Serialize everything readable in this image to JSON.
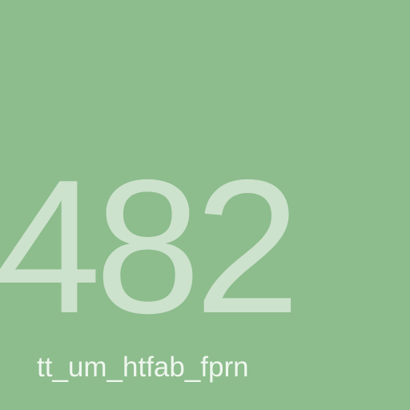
{
  "tile": {
    "number": "482",
    "caption": "tt_um_htfab_fprn",
    "background_color": "#8dbc8d",
    "number_color": "#cce2cc",
    "caption_color": "#eef7ee"
  }
}
